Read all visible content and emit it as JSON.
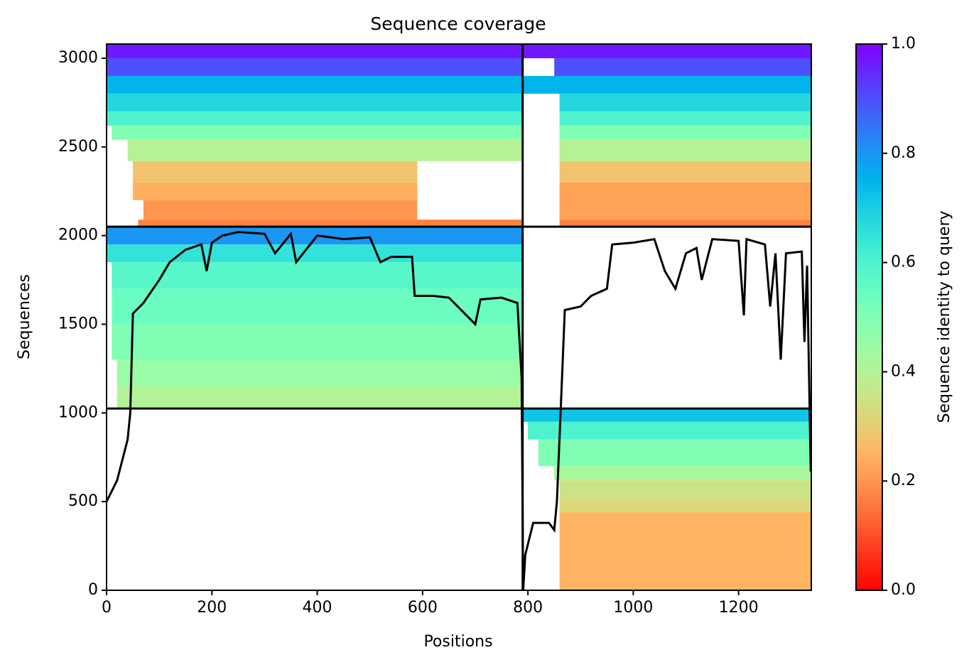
{
  "chart_data": {
    "type": "coverage",
    "title": "Sequence coverage",
    "xlabel": "Positions",
    "ylabel": "Sequences",
    "colorbar_label": "Sequence identity to query",
    "colormap": "rainbow_r",
    "clim": [
      0,
      1
    ],
    "cticks": [
      {
        "value": 0,
        "label": "0.0"
      },
      {
        "value": 0.2,
        "label": "0.2"
      },
      {
        "value": 0.4,
        "label": "0.4"
      },
      {
        "value": 0.6,
        "label": "0.6"
      },
      {
        "value": 0.8,
        "label": "0.8"
      },
      {
        "value": 1,
        "label": "1.0"
      }
    ],
    "xlim": [
      0,
      1338
    ],
    "ylim": [
      0,
      3080
    ],
    "xticks": [
      0,
      200,
      400,
      600,
      800,
      1000,
      1200
    ],
    "yticks": [
      0,
      500,
      1000,
      1500,
      2000,
      2500,
      3000
    ],
    "bands": [
      {
        "x": [
          0,
          790
        ],
        "y": [
          3000,
          3080
        ],
        "identity": 0.97
      },
      {
        "x": [
          0,
          790
        ],
        "y": [
          2900,
          3000
        ],
        "identity": 0.9
      },
      {
        "x": [
          0,
          790
        ],
        "y": [
          2800,
          2900
        ],
        "identity": 0.75
      },
      {
        "x": [
          0,
          790
        ],
        "y": [
          2700,
          2800
        ],
        "identity": 0.68
      },
      {
        "x": [
          0,
          790
        ],
        "y": [
          2620,
          2700
        ],
        "identity": 0.6
      },
      {
        "x": [
          10,
          790
        ],
        "y": [
          2540,
          2620
        ],
        "identity": 0.5
      },
      {
        "x": [
          40,
          790
        ],
        "y": [
          2420,
          2540
        ],
        "identity": 0.4
      },
      {
        "x": [
          50,
          590
        ],
        "y": [
          2300,
          2420
        ],
        "identity": 0.28
      },
      {
        "x": [
          50,
          590
        ],
        "y": [
          2200,
          2300
        ],
        "identity": 0.24
      },
      {
        "x": [
          70,
          590
        ],
        "y": [
          2090,
          2200
        ],
        "identity": 0.2
      },
      {
        "x": [
          60,
          790
        ],
        "y": [
          2050,
          2090
        ],
        "identity": 0.17
      },
      {
        "x": [
          790,
          1338
        ],
        "y": [
          3000,
          3080
        ],
        "identity": 0.97
      },
      {
        "x": [
          850,
          1338
        ],
        "y": [
          2900,
          3000
        ],
        "identity": 0.9
      },
      {
        "x": [
          790,
          1338
        ],
        "y": [
          2800,
          2900
        ],
        "identity": 0.75
      },
      {
        "x": [
          860,
          1338
        ],
        "y": [
          2700,
          2800
        ],
        "identity": 0.68
      },
      {
        "x": [
          860,
          1338
        ],
        "y": [
          2620,
          2700
        ],
        "identity": 0.6
      },
      {
        "x": [
          860,
          1338
        ],
        "y": [
          2540,
          2620
        ],
        "identity": 0.5
      },
      {
        "x": [
          860,
          1338
        ],
        "y": [
          2420,
          2540
        ],
        "identity": 0.4
      },
      {
        "x": [
          860,
          1338
        ],
        "y": [
          2300,
          2420
        ],
        "identity": 0.28
      },
      {
        "x": [
          860,
          1338
        ],
        "y": [
          2090,
          2300
        ],
        "identity": 0.22
      },
      {
        "x": [
          860,
          1338
        ],
        "y": [
          2050,
          2090
        ],
        "identity": 0.17
      },
      {
        "x": [
          0,
          790
        ],
        "y": [
          1950,
          2050
        ],
        "identity": 0.8
      },
      {
        "x": [
          0,
          790
        ],
        "y": [
          1850,
          1950
        ],
        "identity": 0.65
      },
      {
        "x": [
          10,
          790
        ],
        "y": [
          1700,
          1850
        ],
        "identity": 0.58
      },
      {
        "x": [
          10,
          790
        ],
        "y": [
          1500,
          1700
        ],
        "identity": 0.54
      },
      {
        "x": [
          10,
          790
        ],
        "y": [
          1300,
          1500
        ],
        "identity": 0.5
      },
      {
        "x": [
          20,
          790
        ],
        "y": [
          1150,
          1300
        ],
        "identity": 0.45
      },
      {
        "x": [
          20,
          790
        ],
        "y": [
          1025,
          1150
        ],
        "identity": 0.4
      },
      {
        "x": [
          790,
          1338
        ],
        "y": [
          950,
          1025
        ],
        "identity": 0.72
      },
      {
        "x": [
          800,
          1338
        ],
        "y": [
          850,
          950
        ],
        "identity": 0.6
      },
      {
        "x": [
          820,
          1338
        ],
        "y": [
          700,
          850
        ],
        "identity": 0.5
      },
      {
        "x": [
          850,
          1338
        ],
        "y": [
          620,
          700
        ],
        "identity": 0.42
      },
      {
        "x": [
          860,
          1338
        ],
        "y": [
          520,
          620
        ],
        "identity": 0.35
      },
      {
        "x": [
          860,
          1338
        ],
        "y": [
          440,
          520
        ],
        "identity": 0.32
      },
      {
        "x": [
          860,
          1338
        ],
        "y": [
          0,
          440
        ],
        "identity": 0.25
      }
    ],
    "dividers": {
      "x": [
        790
      ],
      "y": [
        1025,
        2050
      ]
    },
    "coverage": {
      "x": [
        0,
        20,
        40,
        45,
        50,
        70,
        100,
        120,
        150,
        180,
        190,
        200,
        220,
        250,
        300,
        320,
        350,
        360,
        400,
        450,
        500,
        520,
        540,
        580,
        585,
        620,
        650,
        700,
        710,
        750,
        780,
        788,
        791,
        795,
        810,
        840,
        850,
        855,
        862,
        870,
        900,
        920,
        950,
        960,
        1000,
        1040,
        1060,
        1080,
        1100,
        1120,
        1130,
        1150,
        1200,
        1210,
        1215,
        1250,
        1260,
        1270,
        1280,
        1290,
        1320,
        1325,
        1330,
        1337
      ],
      "values": [
        500,
        620,
        850,
        1000,
        1560,
        1620,
        1750,
        1850,
        1920,
        1950,
        1800,
        1960,
        2000,
        2020,
        2010,
        1900,
        2010,
        1850,
        2000,
        1980,
        1990,
        1850,
        1880,
        1880,
        1660,
        1660,
        1650,
        1500,
        1640,
        1650,
        1620,
        1200,
        0,
        200,
        380,
        380,
        340,
        500,
        1000,
        1580,
        1600,
        1660,
        1700,
        1950,
        1960,
        1980,
        1800,
        1700,
        1900,
        1930,
        1750,
        1980,
        1970,
        1550,
        1980,
        1950,
        1600,
        1900,
        1300,
        1900,
        1910,
        1400,
        1830,
        670
      ]
    }
  }
}
